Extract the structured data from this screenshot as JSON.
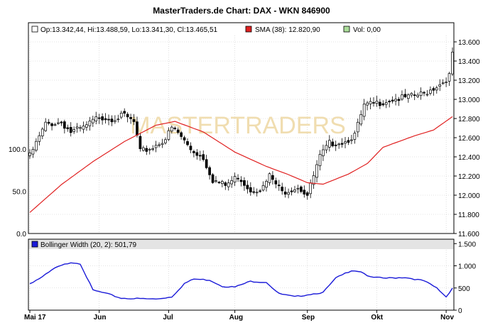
{
  "chart_data": {
    "type": "candlestick",
    "title": "MasterTraders.de Chart: DAX - WKN 846900",
    "watermark": "MASTERTRADERS",
    "colors": {
      "frame": "#000000",
      "grid": "#c8c8c8",
      "up_candle": "#ffffff",
      "down_candle": "#000000",
      "sma": "#e02020",
      "bollinger": "#1a1ad8",
      "volume": "#aadd99",
      "legend_bar": "#e4e4e4",
      "watermark": "#f0ddb0"
    },
    "x_axis": {
      "labels": [
        "Mai 17",
        "Jun",
        "Jul",
        "Aug",
        "Sep",
        "Okt",
        "Nov"
      ],
      "label_day_index": [
        0,
        22,
        44,
        65,
        88,
        110,
        132
      ],
      "day_count": 135
    },
    "price_panel": {
      "legend": {
        "ohlc": "Op:13.342,44, Hi:13.488,59, Lo:13.341,30, Cl:13.465,51",
        "sma": "SMA (38): 12.820,90",
        "volume": "Vol: 0,00"
      },
      "ylim": [
        11600,
        13800
      ],
      "right_ticks": [
        {
          "v": 13600,
          "label": "13.600"
        },
        {
          "v": 13400,
          "label": "13.400"
        },
        {
          "v": 13200,
          "label": "13.200"
        },
        {
          "v": 13000,
          "label": "13.000"
        },
        {
          "v": 12800,
          "label": "12.800"
        },
        {
          "v": 12600,
          "label": "12.600"
        },
        {
          "v": 12400,
          "label": "12.400"
        },
        {
          "v": 12200,
          "label": "12.200"
        },
        {
          "v": 12000,
          "label": "12.000"
        },
        {
          "v": 11800,
          "label": "11.800"
        },
        {
          "v": 11600,
          "label": "11.600"
        }
      ],
      "volume_ylim": [
        0,
        250
      ],
      "left_ticks": [
        {
          "v": 100,
          "label": "100.0"
        },
        {
          "v": 50,
          "label": "50.0"
        },
        {
          "v": 0,
          "label": "0.0"
        }
      ],
      "close_anchors": [
        [
          0,
          12410
        ],
        [
          5,
          12740
        ],
        [
          10,
          12760
        ],
        [
          13,
          12660
        ],
        [
          17,
          12700
        ],
        [
          22,
          12820
        ],
        [
          26,
          12800
        ],
        [
          30,
          12830
        ],
        [
          33,
          12760
        ],
        [
          35,
          12450
        ],
        [
          39,
          12500
        ],
        [
          43,
          12590
        ],
        [
          45,
          12700
        ],
        [
          47,
          12650
        ],
        [
          51,
          12480
        ],
        [
          55,
          12390
        ],
        [
          58,
          12160
        ],
        [
          62,
          12100
        ],
        [
          66,
          12200
        ],
        [
          70,
          12050
        ],
        [
          74,
          12080
        ],
        [
          76,
          12200
        ],
        [
          80,
          12030
        ],
        [
          85,
          12090
        ],
        [
          88,
          12000
        ],
        [
          92,
          12400
        ],
        [
          95,
          12540
        ],
        [
          100,
          12560
        ],
        [
          103,
          12630
        ],
        [
          106,
          12930
        ],
        [
          110,
          12960
        ],
        [
          115,
          13000
        ],
        [
          120,
          13020
        ],
        [
          125,
          13060
        ],
        [
          131,
          13180
        ],
        [
          133,
          13250
        ],
        [
          134,
          13465
        ]
      ],
      "sma_anchors": [
        [
          0,
          11820
        ],
        [
          10,
          12110
        ],
        [
          20,
          12350
        ],
        [
          30,
          12560
        ],
        [
          40,
          12730
        ],
        [
          46,
          12770
        ],
        [
          55,
          12660
        ],
        [
          65,
          12450
        ],
        [
          75,
          12300
        ],
        [
          82,
          12215
        ],
        [
          88,
          12130
        ],
        [
          93,
          12115
        ],
        [
          101,
          12220
        ],
        [
          107,
          12330
        ],
        [
          112,
          12500
        ],
        [
          122,
          12620
        ],
        [
          128,
          12680
        ],
        [
          134,
          12820
        ]
      ]
    },
    "indicator_panel": {
      "legend": "Bollinger Width (20, 2): 501,79",
      "ylim": [
        0,
        1600
      ],
      "right_ticks": [
        {
          "v": 1500,
          "label": "1.500"
        },
        {
          "v": 1000,
          "label": "1.000"
        },
        {
          "v": 500,
          "label": "500"
        },
        {
          "v": 0,
          "label": "0"
        }
      ],
      "anchors": [
        [
          0,
          600
        ],
        [
          4,
          750
        ],
        [
          8,
          950
        ],
        [
          13,
          1080
        ],
        [
          16,
          1050
        ],
        [
          20,
          450
        ],
        [
          24,
          380
        ],
        [
          29,
          270
        ],
        [
          34,
          260
        ],
        [
          40,
          250
        ],
        [
          45,
          300
        ],
        [
          49,
          600
        ],
        [
          52,
          700
        ],
        [
          57,
          680
        ],
        [
          61,
          540
        ],
        [
          65,
          520
        ],
        [
          70,
          650
        ],
        [
          75,
          630
        ],
        [
          79,
          370
        ],
        [
          84,
          300
        ],
        [
          88,
          350
        ],
        [
          93,
          400
        ],
        [
          97,
          720
        ],
        [
          102,
          900
        ],
        [
          105,
          870
        ],
        [
          108,
          740
        ],
        [
          113,
          720
        ],
        [
          119,
          740
        ],
        [
          125,
          660
        ],
        [
          129,
          500
        ],
        [
          132,
          300
        ],
        [
          134,
          502
        ]
      ]
    }
  }
}
